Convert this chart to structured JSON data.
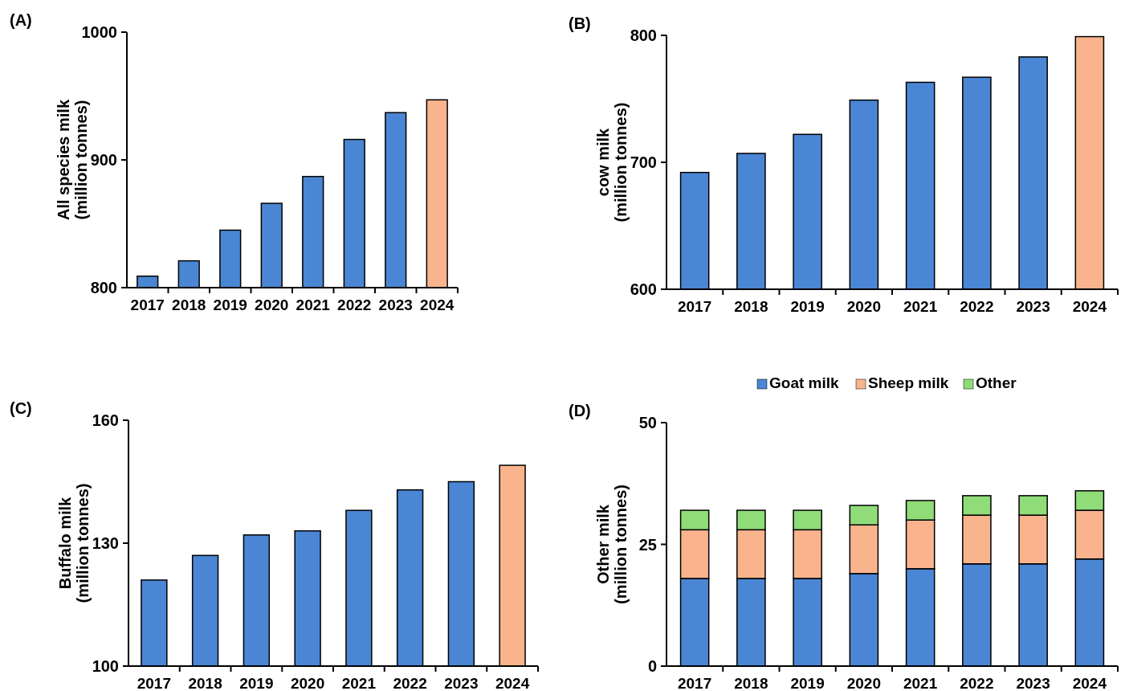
{
  "chart_data": [
    {
      "type": "bar",
      "title": "(A)",
      "ylabel": "All species milk\n(million tonnes)",
      "categories": [
        "2017",
        "2018",
        "2019",
        "2020",
        "2021",
        "2022",
        "2023",
        "2024"
      ],
      "values": [
        809,
        821,
        845,
        866,
        887,
        916,
        937,
        947
      ],
      "colors": [
        "#4a86d4",
        "#4a86d4",
        "#4a86d4",
        "#4a86d4",
        "#4a86d4",
        "#4a86d4",
        "#4a86d4",
        "#f9b48e"
      ],
      "ylim": [
        800,
        1000
      ],
      "yticks": [
        800,
        900,
        1000
      ],
      "grid": false
    },
    {
      "type": "bar",
      "title": "(B)",
      "ylabel": "cow milk\n(million tonnes)",
      "categories": [
        "2017",
        "2018",
        "2019",
        "2020",
        "2021",
        "2022",
        "2023",
        "2024"
      ],
      "values": [
        692,
        707,
        722,
        749,
        763,
        767,
        783,
        799
      ],
      "colors": [
        "#4a86d4",
        "#4a86d4",
        "#4a86d4",
        "#4a86d4",
        "#4a86d4",
        "#4a86d4",
        "#4a86d4",
        "#f9b48e"
      ],
      "ylim": [
        600,
        800
      ],
      "yticks": [
        600,
        700,
        800
      ],
      "grid": false
    },
    {
      "type": "bar",
      "title": "(C)",
      "ylabel": "Buffalo milk\n(million tonnes)",
      "categories": [
        "2017",
        "2018",
        "2019",
        "2020",
        "2021",
        "2022",
        "2023",
        "2024"
      ],
      "values": [
        121,
        127,
        132,
        133,
        138,
        143,
        145,
        149
      ],
      "colors": [
        "#4a86d4",
        "#4a86d4",
        "#4a86d4",
        "#4a86d4",
        "#4a86d4",
        "#4a86d4",
        "#4a86d4",
        "#f9b48e"
      ],
      "ylim": [
        100,
        160
      ],
      "yticks": [
        100,
        130,
        160
      ],
      "grid": false
    },
    {
      "type": "bar",
      "title": "(D)",
      "ylabel": "Other milk\n(million tonnes)",
      "categories": [
        "2017",
        "2018",
        "2019",
        "2020",
        "2021",
        "2022",
        "2023",
        "2024"
      ],
      "stacked": true,
      "legend": "top",
      "series": [
        {
          "name": "Goat milk",
          "color": "#4a86d4",
          "values": [
            18,
            18,
            18,
            19,
            20,
            21,
            21,
            22
          ]
        },
        {
          "name": "Sheep milk",
          "color": "#f9b48e",
          "values": [
            10,
            10,
            10,
            10,
            10,
            10,
            10,
            10
          ]
        },
        {
          "name": "Other",
          "color": "#8fdc78",
          "values": [
            4,
            4,
            4,
            4,
            4,
            4,
            4,
            4
          ]
        }
      ],
      "ylim": [
        0,
        50
      ],
      "yticks": [
        0,
        25,
        50
      ],
      "grid": false
    }
  ]
}
